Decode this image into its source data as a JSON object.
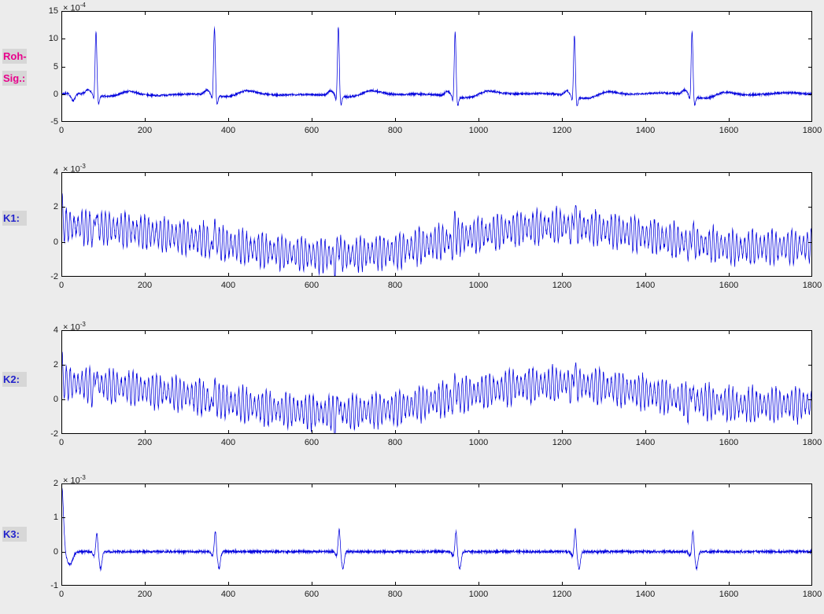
{
  "figure": {
    "bg": "#ececec",
    "plot_bg": "#ffffff",
    "axis_color": "#000000",
    "line_color": "#0000dd",
    "tick_label_color": "#1a1a1a",
    "label_box_bg": "#d7d7d7"
  },
  "row_labels": [
    {
      "lines": [
        "Roh-",
        "Sig.:"
      ],
      "color": "#e8008c"
    },
    {
      "lines": [
        "K1:"
      ],
      "color": "#2222cc"
    },
    {
      "lines": [
        "K2:"
      ],
      "color": "#2222cc"
    },
    {
      "lines": [
        "K3:"
      ],
      "color": "#2222cc"
    }
  ],
  "chart_data": [
    {
      "type": "line",
      "id": "roh_sig",
      "label": "Roh-Sig.:",
      "unit_exponent": {
        "prefix": "× 10",
        "power": "-4"
      },
      "xlim": [
        0,
        1800
      ],
      "ylim": [
        -5,
        15
      ],
      "xticks": [
        0,
        200,
        400,
        600,
        800,
        1000,
        1200,
        1400,
        1600,
        1800
      ],
      "yticks": [
        -5,
        0,
        5,
        10,
        15
      ],
      "grid": false,
      "legend": false,
      "series_color": "#0000dd",
      "signal": {
        "kind": "ecg",
        "beats": [
          83,
          367,
          664,
          944,
          1230,
          1512
        ],
        "r_amplitudes": [
          11.5,
          12.3,
          12.5,
          11.7,
          11.2,
          11.8
        ],
        "q_amp": -1.1,
        "s_amp": -1.6,
        "p_amp": 0.85,
        "t_amp": 0.5,
        "st_depression": -0.55,
        "start_dip": {
          "x": 28,
          "amp": -1.3
        },
        "noise": 0.18,
        "seed": 7
      }
    },
    {
      "type": "line",
      "id": "k1",
      "label": "K1:",
      "unit_exponent": {
        "prefix": "× 10",
        "power": "-3"
      },
      "xlim": [
        0,
        1800
      ],
      "ylim": [
        -2,
        4
      ],
      "xticks": [
        0,
        200,
        400,
        600,
        800,
        1000,
        1200,
        1400,
        1600,
        1800
      ],
      "yticks": [
        -2,
        0,
        2,
        4
      ],
      "grid": false,
      "legend": false,
      "series_color": "#0000dd",
      "signal": {
        "kind": "osc",
        "wander": [
          [
            0,
            0.95
          ],
          [
            120,
            0.8
          ],
          [
            300,
            0.25
          ],
          [
            480,
            -0.5
          ],
          [
            640,
            -0.8
          ],
          [
            800,
            -0.55
          ],
          [
            950,
            0.2
          ],
          [
            1100,
            0.8
          ],
          [
            1210,
            0.95
          ],
          [
            1340,
            0.6
          ],
          [
            1480,
            0.05
          ],
          [
            1620,
            -0.35
          ],
          [
            1800,
            -0.25
          ]
        ],
        "osc_amp": 1.0,
        "osc_period": 9.4,
        "mod_period": 47,
        "initial_amp": 1.5,
        "beats": [
          83,
          367,
          664,
          944,
          1230,
          1512
        ],
        "spike_amps": [
          0.9,
          0.95,
          1.0,
          0.95,
          1.2,
          0.9
        ],
        "neg_spike_amp": -0.55,
        "noise": 0.1,
        "seed": 11
      }
    },
    {
      "type": "line",
      "id": "k2",
      "label": "K2:",
      "unit_exponent": {
        "prefix": "× 10",
        "power": "-3"
      },
      "xlim": [
        0,
        1800
      ],
      "ylim": [
        -2,
        4
      ],
      "xticks": [
        0,
        200,
        400,
        600,
        800,
        1000,
        1200,
        1400,
        1600,
        1800
      ],
      "yticks": [
        -2,
        0,
        2,
        4
      ],
      "grid": false,
      "legend": false,
      "series_color": "#0000dd",
      "signal": {
        "kind": "osc",
        "wander": [
          [
            0,
            0.95
          ],
          [
            120,
            0.8
          ],
          [
            300,
            0.25
          ],
          [
            480,
            -0.5
          ],
          [
            640,
            -0.8
          ],
          [
            800,
            -0.55
          ],
          [
            950,
            0.2
          ],
          [
            1100,
            0.8
          ],
          [
            1210,
            0.95
          ],
          [
            1340,
            0.6
          ],
          [
            1480,
            0.05
          ],
          [
            1620,
            -0.35
          ],
          [
            1800,
            -0.25
          ]
        ],
        "osc_amp": 1.0,
        "osc_period": 9.4,
        "mod_period": 53,
        "initial_amp": 1.4,
        "beats": [
          83,
          367,
          664,
          944,
          1230,
          1512
        ],
        "spike_amps": [
          0.9,
          0.9,
          1.0,
          0.95,
          1.25,
          0.9
        ],
        "neg_spike_amp": -0.55,
        "noise": 0.1,
        "seed": 13
      }
    },
    {
      "type": "line",
      "id": "k3",
      "label": "K3:",
      "unit_exponent": {
        "prefix": "× 10",
        "power": "-3"
      },
      "xlim": [
        0,
        1800
      ],
      "ylim": [
        -1,
        2
      ],
      "xticks": [
        0,
        200,
        400,
        600,
        800,
        1000,
        1200,
        1400,
        1600,
        1800
      ],
      "yticks": [
        -1,
        0,
        1,
        2
      ],
      "grid": false,
      "legend": false,
      "series_color": "#0000dd",
      "signal": {
        "kind": "spikes",
        "beats": [
          85,
          369,
          666,
          946,
          1232,
          1514
        ],
        "up_amps": [
          0.55,
          0.62,
          0.68,
          0.6,
          0.66,
          0.6
        ],
        "down_amp": -0.5,
        "initial_transient": {
          "amp": 1.9,
          "center": 1,
          "width": 4,
          "undershoot": -0.38,
          "undershoot_x": 20
        },
        "noise": 0.035,
        "seed": 21
      }
    }
  ]
}
